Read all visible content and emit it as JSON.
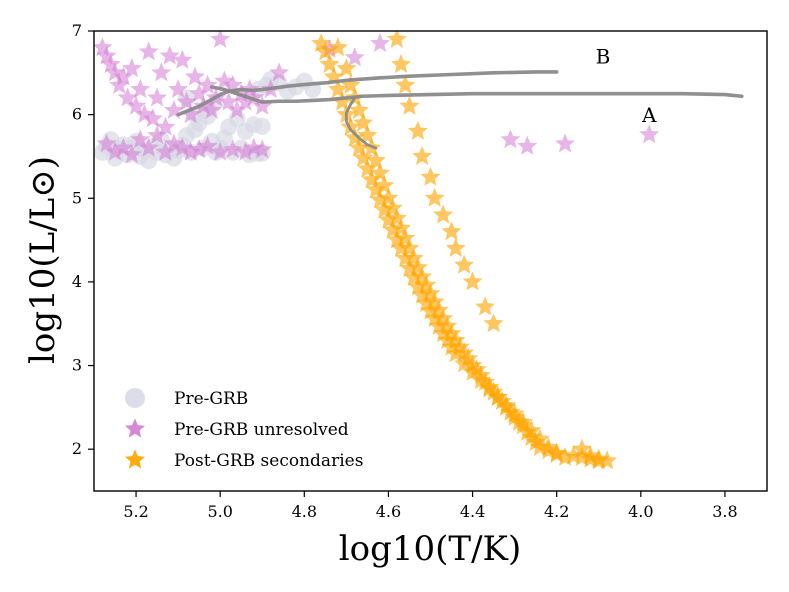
{
  "chart_data": {
    "type": "scatter",
    "title": "",
    "xlabel": "log10(T/K)",
    "ylabel": "log10(L/L⊙)",
    "xlim": [
      5.3,
      3.7
    ],
    "ylim": [
      1.5,
      7.0
    ],
    "xticks": [
      5.2,
      5.0,
      4.8,
      4.6,
      4.4,
      4.2,
      4.0,
      3.8
    ],
    "yticks": [
      2,
      3,
      4,
      5,
      6,
      7
    ],
    "xtick_labels": [
      "5.2",
      "5.0",
      "4.8",
      "4.6",
      "4.4",
      "4.2",
      "4.0",
      "3.8"
    ],
    "ytick_labels": [
      "2",
      "3",
      "4",
      "5",
      "6",
      "7"
    ],
    "grid": false,
    "legend_position": "bottom-left",
    "colors": {
      "pre_grb": "#d8d9e6",
      "pre_grb_unresolved": "#d57fd6",
      "post_grb": "#ffa500",
      "tracks": "#8a8a8a"
    },
    "series": [
      {
        "name": "Pre-GRB",
        "marker": "circle",
        "points": [
          [
            5.28,
            5.55
          ],
          [
            5.27,
            5.62
          ],
          [
            5.26,
            5.7
          ],
          [
            5.25,
            5.48
          ],
          [
            5.24,
            5.58
          ],
          [
            5.23,
            5.64
          ],
          [
            5.22,
            5.52
          ],
          [
            5.21,
            5.6
          ],
          [
            5.2,
            5.68
          ],
          [
            5.19,
            5.5
          ],
          [
            5.18,
            5.57
          ],
          [
            5.17,
            5.45
          ],
          [
            5.16,
            5.62
          ],
          [
            5.15,
            5.55
          ],
          [
            5.14,
            5.7
          ],
          [
            5.13,
            5.52
          ],
          [
            5.12,
            5.6
          ],
          [
            5.11,
            5.48
          ],
          [
            5.1,
            5.57
          ],
          [
            5.09,
            5.63
          ],
          [
            5.08,
            5.75
          ],
          [
            5.07,
            5.55
          ],
          [
            5.06,
            5.82
          ],
          [
            5.05,
            5.9
          ],
          [
            5.04,
            5.6
          ],
          [
            5.03,
            5.98
          ],
          [
            5.02,
            5.68
          ],
          [
            5.01,
            5.55
          ],
          [
            5.0,
            5.6
          ],
          [
            4.99,
            5.72
          ],
          [
            4.98,
            5.85
          ],
          [
            4.97,
            5.55
          ],
          [
            4.96,
            5.95
          ],
          [
            4.95,
            5.6
          ],
          [
            4.94,
            5.8
          ],
          [
            4.93,
            5.52
          ],
          [
            4.92,
            5.88
          ],
          [
            4.91,
            5.54
          ],
          [
            4.9,
            5.86
          ],
          [
            4.9,
            5.54
          ],
          [
            4.91,
            6.3
          ],
          [
            4.89,
            6.35
          ],
          [
            4.88,
            6.42
          ],
          [
            4.86,
            6.38
          ],
          [
            4.84,
            6.28
          ],
          [
            4.82,
            6.33
          ],
          [
            4.8,
            6.4
          ],
          [
            4.78,
            6.3
          ],
          [
            5.01,
            6.15
          ],
          [
            5.03,
            6.08
          ],
          [
            5.06,
            6.0
          ],
          [
            5.08,
            6.2
          ]
        ]
      },
      {
        "name": "Pre-GRB unresolved",
        "marker": "star",
        "points": [
          [
            5.28,
            6.8
          ],
          [
            5.27,
            6.7
          ],
          [
            5.26,
            6.6
          ],
          [
            5.25,
            6.5
          ],
          [
            5.24,
            6.35
          ],
          [
            5.23,
            6.45
          ],
          [
            5.22,
            6.2
          ],
          [
            5.21,
            6.55
          ],
          [
            5.2,
            6.1
          ],
          [
            5.19,
            6.3
          ],
          [
            5.18,
            6.0
          ],
          [
            5.17,
            6.75
          ],
          [
            5.16,
            5.95
          ],
          [
            5.15,
            6.2
          ],
          [
            5.14,
            6.5
          ],
          [
            5.13,
            5.85
          ],
          [
            5.12,
            6.7
          ],
          [
            5.11,
            6.05
          ],
          [
            5.1,
            6.3
          ],
          [
            5.09,
            6.65
          ],
          [
            5.08,
            6.15
          ],
          [
            5.07,
            6.0
          ],
          [
            5.06,
            6.45
          ],
          [
            5.05,
            6.25
          ],
          [
            5.04,
            6.1
          ],
          [
            5.03,
            6.35
          ],
          [
            5.02,
            6.05
          ],
          [
            5.01,
            6.2
          ],
          [
            5.0,
            6.9
          ],
          [
            4.99,
            6.4
          ],
          [
            4.98,
            6.15
          ],
          [
            4.97,
            6.35
          ],
          [
            4.96,
            6.05
          ],
          [
            4.95,
            6.25
          ],
          [
            4.94,
            6.15
          ],
          [
            4.93,
            6.3
          ],
          [
            4.92,
            6.2
          ],
          [
            4.9,
            6.1
          ],
          [
            4.88,
            6.3
          ],
          [
            4.86,
            6.5
          ],
          [
            5.27,
            5.65
          ],
          [
            5.25,
            5.55
          ],
          [
            5.23,
            5.6
          ],
          [
            5.21,
            5.52
          ],
          [
            5.19,
            5.7
          ],
          [
            5.17,
            5.6
          ],
          [
            5.15,
            5.75
          ],
          [
            5.13,
            5.55
          ],
          [
            5.11,
            5.65
          ],
          [
            5.09,
            5.6
          ],
          [
            5.07,
            5.55
          ],
          [
            5.05,
            5.58
          ],
          [
            5.03,
            5.62
          ],
          [
            5.0,
            5.55
          ],
          [
            4.97,
            5.58
          ],
          [
            4.94,
            5.55
          ],
          [
            4.92,
            5.6
          ],
          [
            4.9,
            5.58
          ],
          [
            4.31,
            5.7
          ],
          [
            4.27,
            5.62
          ],
          [
            4.18,
            5.65
          ],
          [
            3.98,
            5.76
          ],
          [
            4.62,
            6.85
          ],
          [
            4.74,
            6.78
          ],
          [
            4.68,
            6.68
          ]
        ]
      },
      {
        "name": "Post-GRB secondaries",
        "marker": "star",
        "points": [
          [
            4.76,
            6.85
          ],
          [
            4.75,
            6.75
          ],
          [
            4.74,
            6.6
          ],
          [
            4.73,
            6.45
          ],
          [
            4.72,
            6.3
          ],
          [
            4.71,
            6.15
          ],
          [
            4.7,
            6.0
          ],
          [
            4.69,
            5.85
          ],
          [
            4.68,
            5.72
          ],
          [
            4.67,
            5.6
          ],
          [
            4.66,
            5.48
          ],
          [
            4.65,
            5.35
          ],
          [
            4.64,
            5.22
          ],
          [
            4.63,
            5.1
          ],
          [
            4.62,
            4.98
          ],
          [
            4.61,
            4.86
          ],
          [
            4.6,
            4.74
          ],
          [
            4.59,
            4.62
          ],
          [
            4.58,
            4.5
          ],
          [
            4.57,
            4.4
          ],
          [
            4.56,
            4.28
          ],
          [
            4.55,
            4.16
          ],
          [
            4.54,
            4.05
          ],
          [
            4.53,
            3.94
          ],
          [
            4.52,
            3.84
          ],
          [
            4.51,
            3.74
          ],
          [
            4.5,
            3.65
          ],
          [
            4.49,
            3.56
          ],
          [
            4.48,
            3.47
          ],
          [
            4.47,
            3.38
          ],
          [
            4.46,
            3.3
          ],
          [
            4.45,
            3.22
          ],
          [
            4.44,
            3.14
          ],
          [
            4.42,
            3.02
          ],
          [
            4.4,
            2.92
          ],
          [
            4.38,
            2.82
          ],
          [
            4.36,
            2.72
          ],
          [
            4.34,
            2.62
          ],
          [
            4.32,
            2.52
          ],
          [
            4.3,
            2.42
          ],
          [
            4.28,
            2.32
          ],
          [
            4.26,
            2.22
          ],
          [
            4.24,
            2.12
          ],
          [
            4.22,
            2.02
          ],
          [
            4.2,
            1.95
          ],
          [
            4.18,
            1.9
          ],
          [
            4.14,
            2.0
          ],
          [
            4.12,
            1.92
          ],
          [
            4.1,
            1.88
          ],
          [
            4.08,
            1.86
          ],
          [
            4.72,
            6.8
          ],
          [
            4.7,
            6.55
          ],
          [
            4.69,
            6.35
          ],
          [
            4.68,
            6.2
          ],
          [
            4.67,
            6.05
          ],
          [
            4.66,
            5.9
          ],
          [
            4.65,
            5.75
          ],
          [
            4.64,
            5.6
          ],
          [
            4.63,
            5.45
          ],
          [
            4.62,
            5.3
          ],
          [
            4.61,
            5.15
          ],
          [
            4.6,
            5.0
          ],
          [
            4.59,
            4.88
          ],
          [
            4.58,
            4.76
          ],
          [
            4.57,
            4.64
          ],
          [
            4.56,
            4.52
          ],
          [
            4.55,
            4.4
          ],
          [
            4.54,
            4.28
          ],
          [
            4.53,
            4.17
          ],
          [
            4.52,
            4.06
          ],
          [
            4.51,
            3.96
          ],
          [
            4.5,
            3.86
          ],
          [
            4.49,
            3.76
          ],
          [
            4.48,
            3.66
          ],
          [
            4.47,
            3.56
          ],
          [
            4.46,
            3.47
          ],
          [
            4.45,
            3.38
          ],
          [
            4.44,
            3.3
          ],
          [
            4.43,
            3.22
          ],
          [
            4.42,
            3.15
          ],
          [
            4.41,
            3.08
          ],
          [
            4.4,
            3.0
          ],
          [
            4.39,
            2.95
          ],
          [
            4.38,
            2.88
          ],
          [
            4.37,
            2.8
          ],
          [
            4.36,
            2.74
          ],
          [
            4.35,
            2.68
          ],
          [
            4.34,
            2.62
          ],
          [
            4.33,
            2.57
          ],
          [
            4.32,
            2.5
          ],
          [
            4.31,
            2.44
          ],
          [
            4.3,
            2.38
          ],
          [
            4.29,
            2.32
          ],
          [
            4.28,
            2.28
          ],
          [
            4.27,
            2.2
          ],
          [
            4.26,
            2.14
          ],
          [
            4.25,
            2.08
          ],
          [
            4.24,
            2.02
          ],
          [
            4.22,
            1.98
          ],
          [
            4.2,
            1.94
          ],
          [
            4.16,
            1.92
          ],
          [
            4.14,
            1.9
          ],
          [
            4.12,
            1.88
          ],
          [
            4.1,
            1.86
          ],
          [
            4.58,
            6.9
          ],
          [
            4.57,
            6.6
          ],
          [
            4.56,
            6.35
          ],
          [
            4.55,
            6.1
          ],
          [
            4.53,
            5.8
          ],
          [
            4.52,
            5.5
          ],
          [
            4.5,
            5.25
          ],
          [
            4.49,
            5.0
          ],
          [
            4.47,
            4.8
          ],
          [
            4.45,
            4.6
          ],
          [
            4.44,
            4.4
          ],
          [
            4.42,
            4.2
          ],
          [
            4.4,
            4.0
          ],
          [
            4.37,
            3.7
          ],
          [
            4.35,
            3.5
          ]
        ]
      }
    ],
    "tracks": [
      {
        "name": "track-B",
        "points": [
          [
            5.1,
            6.0
          ],
          [
            5.08,
            6.04
          ],
          [
            5.05,
            6.1
          ],
          [
            5.02,
            6.18
          ],
          [
            5.0,
            6.24
          ],
          [
            4.98,
            6.28
          ],
          [
            4.95,
            6.3
          ],
          [
            4.92,
            6.29
          ],
          [
            4.9,
            6.3
          ],
          [
            4.87,
            6.32
          ],
          [
            4.84,
            6.34
          ],
          [
            4.8,
            6.36
          ],
          [
            4.75,
            6.38
          ],
          [
            4.7,
            6.41
          ],
          [
            4.62,
            6.44
          ],
          [
            4.55,
            6.46
          ],
          [
            4.45,
            6.48
          ],
          [
            4.35,
            6.5
          ],
          [
            4.25,
            6.51
          ],
          [
            4.2,
            6.51
          ]
        ]
      },
      {
        "name": "track-A",
        "points": [
          [
            5.02,
            6.33
          ],
          [
            4.99,
            6.3
          ],
          [
            4.96,
            6.25
          ],
          [
            4.93,
            6.2
          ],
          [
            4.9,
            6.15
          ],
          [
            4.86,
            6.16
          ],
          [
            4.82,
            6.16
          ],
          [
            4.78,
            6.17
          ],
          [
            4.74,
            6.18
          ],
          [
            4.7,
            6.2
          ],
          [
            4.66,
            6.22
          ],
          [
            4.6,
            6.23
          ],
          [
            4.5,
            6.24
          ],
          [
            4.4,
            6.25
          ],
          [
            4.3,
            6.25
          ],
          [
            4.2,
            6.25
          ],
          [
            4.1,
            6.25
          ],
          [
            4.0,
            6.25
          ],
          [
            3.9,
            6.25
          ],
          [
            3.8,
            6.24
          ],
          [
            3.76,
            6.22
          ]
        ]
      },
      {
        "name": "track-hook",
        "points": [
          [
            4.68,
            6.2
          ],
          [
            4.69,
            6.12
          ],
          [
            4.7,
            6.02
          ],
          [
            4.7,
            5.92
          ],
          [
            4.69,
            5.82
          ],
          [
            4.67,
            5.72
          ],
          [
            4.65,
            5.64
          ],
          [
            4.63,
            5.6
          ]
        ]
      }
    ],
    "annotations": [
      {
        "label": "B",
        "x": 4.09,
        "y": 6.68
      },
      {
        "label": "A",
        "x": 3.98,
        "y": 5.98
      }
    ],
    "legend": [
      {
        "label": "Pre-GRB",
        "marker": "circle"
      },
      {
        "label": "Pre-GRB unresolved",
        "marker": "star"
      },
      {
        "label": "Post-GRB secondaries",
        "marker": "star"
      }
    ]
  }
}
